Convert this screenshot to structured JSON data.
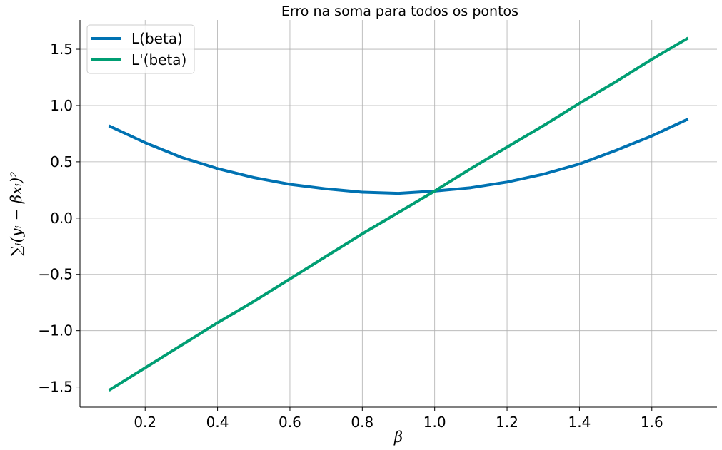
{
  "chart_data": {
    "type": "line",
    "title": "Erro na soma para todos os pontos",
    "xlabel": "β",
    "ylabel": "∑ᵢ(yᵢ − βxᵢ)²",
    "xlim": [
      0.02,
      1.78
    ],
    "ylim": [
      -1.68,
      1.76
    ],
    "xticks": [
      0.2,
      0.4,
      0.6,
      0.8,
      1.0,
      1.2,
      1.4,
      1.6
    ],
    "xtick_labels": [
      "0.2",
      "0.4",
      "0.6",
      "0.8",
      "1.0",
      "1.2",
      "1.4",
      "1.6"
    ],
    "yticks": [
      -1.5,
      -1.0,
      -0.5,
      0.0,
      0.5,
      1.0,
      1.5
    ],
    "ytick_labels": [
      "−1.5",
      "−1.0",
      "−0.5",
      "0.0",
      "0.5",
      "1.0",
      "1.5"
    ],
    "grid": true,
    "legend": "top-left",
    "x": [
      0.1,
      0.2,
      0.3,
      0.4,
      0.5,
      0.6,
      0.7,
      0.8,
      0.9,
      1.0,
      1.1,
      1.2,
      1.3,
      1.4,
      1.5,
      1.6,
      1.7
    ],
    "series": [
      {
        "name": "L(beta)",
        "color": "#0072b2",
        "values": [
          0.82,
          0.67,
          0.54,
          0.44,
          0.36,
          0.3,
          0.26,
          0.23,
          0.22,
          0.24,
          0.27,
          0.32,
          0.39,
          0.48,
          0.6,
          0.73,
          0.88
        ]
      },
      {
        "name": "L'(beta)",
        "color": "#009e73",
        "values": [
          -1.53,
          -1.33,
          -1.13,
          -0.93,
          -0.74,
          -0.54,
          -0.34,
          -0.14,
          0.05,
          0.24,
          0.44,
          0.63,
          0.82,
          1.02,
          1.21,
          1.41,
          1.6
        ]
      }
    ]
  }
}
